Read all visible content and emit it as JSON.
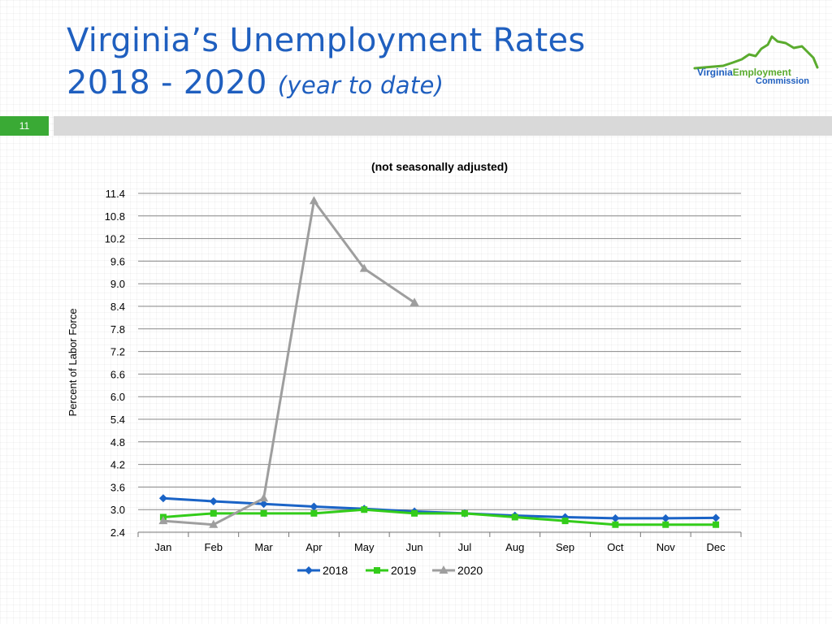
{
  "slide": {
    "title_line1": "Virginia’s Unemployment Rates",
    "title_line2": "2018 - 2020",
    "title_line2_italic": "(year to date)",
    "slide_number": "11"
  },
  "logo": {
    "word1": "Virginia",
    "word2": "Employment",
    "word3": "Commission",
    "color_blue": "#1f5fbf",
    "color_green": "#5aab2e"
  },
  "chart_data": {
    "type": "line",
    "title": "(not seasonally adjusted)",
    "xlabel": "",
    "ylabel": "Percent of Labor Force",
    "categories": [
      "Jan",
      "Feb",
      "Mar",
      "Apr",
      "May",
      "Jun",
      "Jul",
      "Aug",
      "Sep",
      "Oct",
      "Nov",
      "Dec"
    ],
    "ylim": [
      2.4,
      11.4
    ],
    "yticks": [
      "2.4",
      "3.0",
      "3.6",
      "4.2",
      "4.8",
      "5.4",
      "6.0",
      "6.6",
      "7.2",
      "7.8",
      "8.4",
      "9.0",
      "9.6",
      "10.2",
      "10.8",
      "11.4"
    ],
    "grid": true,
    "legend_position": "bottom",
    "series": [
      {
        "name": "2018",
        "color": "#1a63c6",
        "marker": "diamond",
        "values": [
          3.3,
          3.22,
          3.15,
          3.08,
          3.02,
          2.95,
          2.9,
          2.84,
          2.8,
          2.77,
          2.77,
          2.78
        ]
      },
      {
        "name": "2019",
        "color": "#33cc1a",
        "marker": "square",
        "values": [
          2.8,
          2.9,
          2.9,
          2.9,
          3.0,
          2.9,
          2.9,
          2.8,
          2.7,
          2.6,
          2.6,
          2.6
        ]
      },
      {
        "name": "2020",
        "color": "#9e9e9e",
        "marker": "triangle",
        "values": [
          2.7,
          2.6,
          3.3,
          11.2,
          9.4,
          8.5,
          null,
          null,
          null,
          null,
          null,
          null
        ]
      }
    ]
  }
}
